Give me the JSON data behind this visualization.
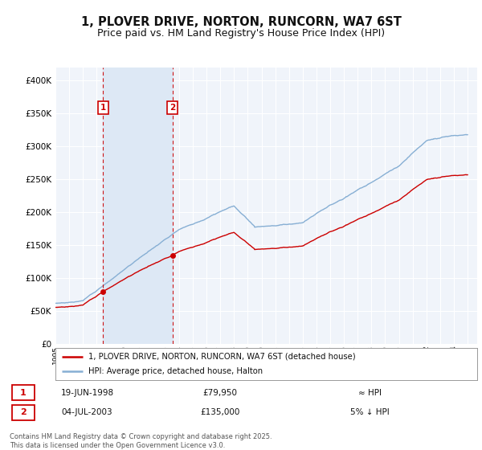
{
  "title": "1, PLOVER DRIVE, NORTON, RUNCORN, WA7 6ST",
  "subtitle": "Price paid vs. HM Land Registry's House Price Index (HPI)",
  "legend_line1": "1, PLOVER DRIVE, NORTON, RUNCORN, WA7 6ST (detached house)",
  "legend_line2": "HPI: Average price, detached house, Halton",
  "footnote": "Contains HM Land Registry data © Crown copyright and database right 2025.\nThis data is licensed under the Open Government Licence v3.0.",
  "annotation1_date": "19-JUN-1998",
  "annotation1_price": "£79,950",
  "annotation1_hpi": "≈ HPI",
  "annotation2_date": "04-JUL-2003",
  "annotation2_price": "£135,000",
  "annotation2_hpi": "5% ↓ HPI",
  "sale1_x": 1998.47,
  "sale1_y": 79950,
  "sale2_x": 2003.51,
  "sale2_y": 135000,
  "vline1_x": 1998.47,
  "vline2_x": 2003.51,
  "ylim": [
    0,
    420000
  ],
  "xlim_start": 1995.0,
  "xlim_end": 2025.7,
  "hpi_color": "#87afd4",
  "property_color": "#cc0000",
  "vline_color": "#cc0000",
  "shade_color": "#dde8f5",
  "background_color": "#ffffff",
  "plot_bg_color": "#f0f4fa",
  "grid_color": "#ffffff",
  "title_fontsize": 10.5,
  "subtitle_fontsize": 9,
  "tick_years": [
    1995,
    1996,
    1997,
    1998,
    1999,
    2000,
    2001,
    2002,
    2003,
    2004,
    2005,
    2006,
    2007,
    2008,
    2009,
    2010,
    2011,
    2012,
    2013,
    2014,
    2015,
    2016,
    2017,
    2018,
    2019,
    2020,
    2021,
    2022,
    2023,
    2024,
    2025
  ]
}
